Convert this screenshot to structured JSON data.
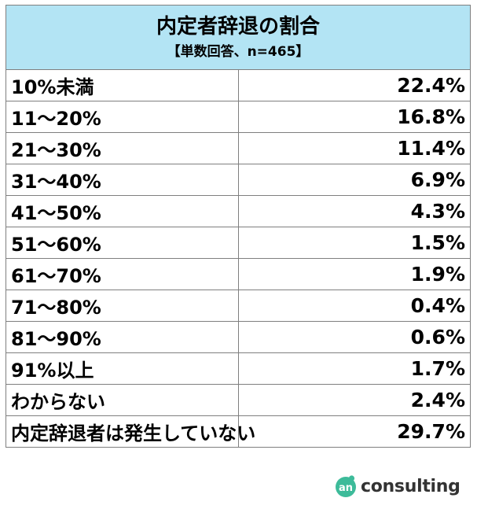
{
  "chart_data": {
    "type": "table",
    "title": "内定者辞退の割合",
    "subtitle": "【単数回答、n=465】",
    "rows": [
      {
        "label": "10%未満",
        "value": "22.4%"
      },
      {
        "label": "11～20%",
        "value": "16.8%"
      },
      {
        "label": "21～30%",
        "value": "11.4%"
      },
      {
        "label": "31～40%",
        "value": "6.9%"
      },
      {
        "label": "41～50%",
        "value": "4.3%"
      },
      {
        "label": "51～60%",
        "value": "1.5%"
      },
      {
        "label": "61～70%",
        "value": "1.9%"
      },
      {
        "label": "71～80%",
        "value": "0.4%"
      },
      {
        "label": "81～90%",
        "value": "0.6%"
      },
      {
        "label": "91%以上",
        "value": "1.7%"
      },
      {
        "label": "わからない",
        "value": "2.4%"
      },
      {
        "label": "内定辞退者は発生していない",
        "value": "29.7%"
      }
    ]
  },
  "logo": {
    "mark_text": "an",
    "text": "consulting",
    "mark_color": "#3dbb9a"
  },
  "colors": {
    "header_bg": "#b3e4f4",
    "border": "#7f7f7f"
  }
}
